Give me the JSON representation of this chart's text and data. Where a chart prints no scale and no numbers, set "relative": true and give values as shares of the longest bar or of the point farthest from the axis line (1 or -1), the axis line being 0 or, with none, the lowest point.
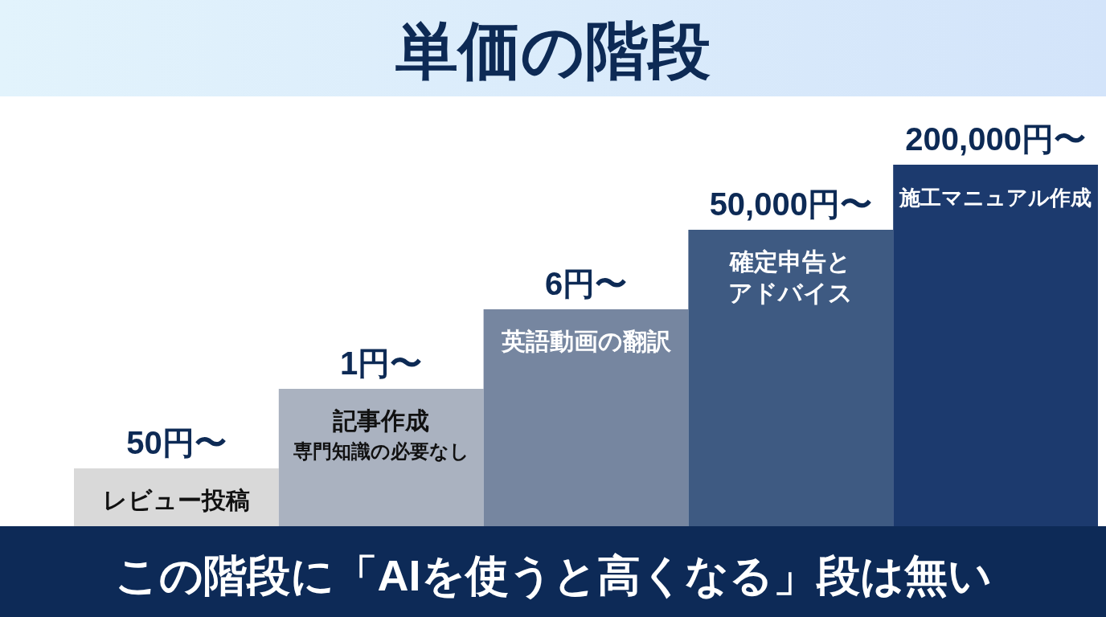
{
  "chart_data": {
    "type": "bar",
    "title": "単価の階段",
    "categories": [
      "レビュー投稿",
      "記事作成",
      "英語動画の翻訳",
      "確定申告とアドバイス",
      "施工マニュアル作成"
    ],
    "values": [
      0.16,
      0.38,
      0.6,
      0.82,
      1
    ],
    "relative": true,
    "colors": [
      "#d9d9d9",
      "#aab2c0",
      "#7686a0",
      "#3e5a82",
      "#1c3a6e"
    ],
    "annotations": [
      {
        "text": "50円〜",
        "x": "レビュー投稿",
        "y": 0.16
      },
      {
        "text": "1円〜",
        "x": "記事作成",
        "y": 0.38
      },
      {
        "text": "専門知識の必要なし",
        "x": "記事作成",
        "y": 0.38
      },
      {
        "text": "6円〜",
        "x": "英語動画の翻訳",
        "y": 0.6
      },
      {
        "text": "50,000円〜",
        "x": "確定申告とアドバイス",
        "y": 0.82
      },
      {
        "text": "200,000円〜",
        "x": "施工マニュアル作成",
        "y": 1
      },
      "この階段に「AIを使うと高くなる」段は無い"
    ]
  }
}
